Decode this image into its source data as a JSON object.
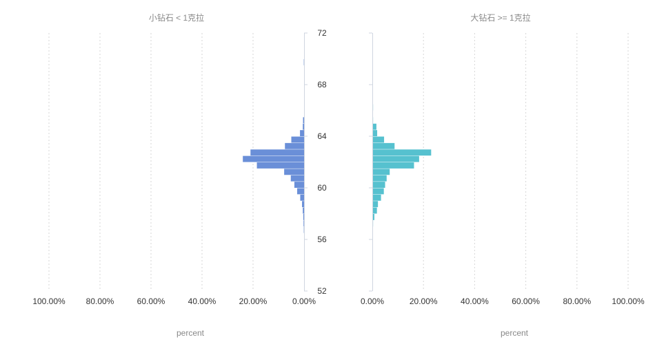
{
  "chart_data": [
    {
      "type": "bar",
      "orientation": "horizontal",
      "direction": "leftward",
      "title": "小钻石 < 1克拉",
      "xlabel": "percent",
      "xlim": [
        0,
        100
      ],
      "x_ticks": [
        "100.00%",
        "80.00%",
        "60.00%",
        "40.00%",
        "20.00%",
        "0.00%"
      ],
      "x_tick_values": [
        100,
        80,
        60,
        40,
        20,
        0
      ],
      "color": "#6a8fd8",
      "grid": "vertical dotted",
      "series": [
        {
          "bins": [
            {
              "from": 69.5,
              "to": 70.0,
              "value": 0.1
            },
            {
              "from": 65.0,
              "to": 65.5,
              "value": 0.4
            },
            {
              "from": 64.5,
              "to": 65.0,
              "value": 0.5
            },
            {
              "from": 64.0,
              "to": 64.5,
              "value": 1.6
            },
            {
              "from": 63.5,
              "to": 64.0,
              "value": 5.0
            },
            {
              "from": 63.0,
              "to": 63.5,
              "value": 7.5
            },
            {
              "from": 62.5,
              "to": 63.0,
              "value": 21.0
            },
            {
              "from": 62.0,
              "to": 62.5,
              "value": 24.0
            },
            {
              "from": 61.5,
              "to": 62.0,
              "value": 18.5
            },
            {
              "from": 61.0,
              "to": 61.5,
              "value": 7.8
            },
            {
              "from": 60.5,
              "to": 61.0,
              "value": 5.2
            },
            {
              "from": 60.0,
              "to": 60.5,
              "value": 3.8
            },
            {
              "from": 59.5,
              "to": 60.0,
              "value": 2.7
            },
            {
              "from": 59.0,
              "to": 59.5,
              "value": 1.5
            },
            {
              "from": 58.5,
              "to": 59.0,
              "value": 0.8
            },
            {
              "from": 58.0,
              "to": 58.5,
              "value": 0.5
            },
            {
              "from": 57.5,
              "to": 58.0,
              "value": 0.3
            },
            {
              "from": 57.0,
              "to": 57.5,
              "value": 0.2
            },
            {
              "from": 56.5,
              "to": 57.0,
              "value": 0.1
            }
          ]
        }
      ]
    },
    {
      "type": "bar",
      "orientation": "horizontal",
      "direction": "rightward",
      "title": "大钻石 >= 1克拉",
      "xlabel": "percent",
      "xlim": [
        0,
        100
      ],
      "x_ticks": [
        "0.00%",
        "20.00%",
        "40.00%",
        "60.00%",
        "80.00%",
        "100.00%"
      ],
      "x_tick_values": [
        0,
        20,
        40,
        60,
        80,
        100
      ],
      "color": "#56c1cf",
      "grid": "vertical dotted",
      "series": [
        {
          "bins": [
            {
              "from": 69.5,
              "to": 70.0,
              "value": 0.1
            },
            {
              "from": 68.5,
              "to": 69.0,
              "value": 0.2
            },
            {
              "from": 67.0,
              "to": 67.5,
              "value": 0.2
            },
            {
              "from": 66.0,
              "to": 66.5,
              "value": 0.3
            },
            {
              "from": 65.0,
              "to": 65.5,
              "value": 0.3
            },
            {
              "from": 64.5,
              "to": 65.0,
              "value": 1.6
            },
            {
              "from": 64.0,
              "to": 64.5,
              "value": 1.9
            },
            {
              "from": 63.5,
              "to": 64.0,
              "value": 4.6
            },
            {
              "from": 63.0,
              "to": 63.5,
              "value": 8.7
            },
            {
              "from": 62.5,
              "to": 63.0,
              "value": 23.0
            },
            {
              "from": 62.0,
              "to": 62.5,
              "value": 18.3
            },
            {
              "from": 61.5,
              "to": 62.0,
              "value": 16.3
            },
            {
              "from": 61.0,
              "to": 61.5,
              "value": 6.8
            },
            {
              "from": 60.5,
              "to": 61.0,
              "value": 5.6
            },
            {
              "from": 60.0,
              "to": 60.5,
              "value": 5.0
            },
            {
              "from": 59.5,
              "to": 60.0,
              "value": 4.5
            },
            {
              "from": 59.0,
              "to": 59.5,
              "value": 3.4
            },
            {
              "from": 58.5,
              "to": 59.0,
              "value": 2.2
            },
            {
              "from": 58.0,
              "to": 58.5,
              "value": 1.8
            },
            {
              "from": 57.5,
              "to": 58.0,
              "value": 0.8
            },
            {
              "from": 57.0,
              "to": 57.5,
              "value": 0.3
            },
            {
              "from": 55.0,
              "to": 55.5,
              "value": 0.2
            }
          ]
        }
      ]
    }
  ],
  "shared_y_axis": {
    "ylim": [
      52,
      72
    ],
    "ticks": [
      "72",
      "68",
      "64",
      "60",
      "56",
      "52"
    ],
    "tick_values": [
      72,
      68,
      64,
      60,
      56,
      52
    ]
  }
}
